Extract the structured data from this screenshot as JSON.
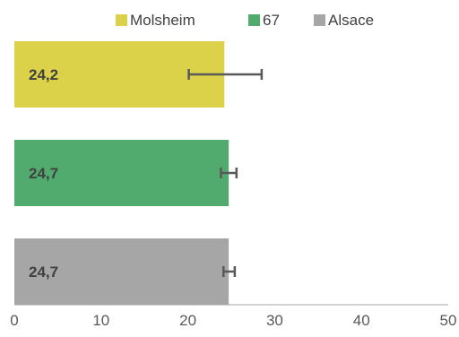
{
  "chart_data": {
    "type": "bar",
    "orientation": "horizontal",
    "categories": [
      "Molsheim",
      "67",
      "Alsace"
    ],
    "values": [
      24.2,
      24.7,
      24.7
    ],
    "value_labels": [
      "24,2",
      "24,7",
      "24,7"
    ],
    "error_bars": [
      {
        "low": 20.1,
        "high": 28.5
      },
      {
        "low": 23.8,
        "high": 25.6
      },
      {
        "low": 24.1,
        "high": 25.4
      }
    ],
    "colors": [
      "#dcd24a",
      "#52ab6e",
      "#a6a6a6"
    ],
    "legend": [
      "Molsheim",
      "67",
      "Alsace"
    ],
    "legend_position": "top",
    "xlim": [
      0,
      50
    ],
    "xticks": [
      0,
      10,
      20,
      30,
      40,
      50
    ],
    "xtick_labels": [
      "0",
      "10",
      "20",
      "30",
      "40",
      "50"
    ],
    "grid": false,
    "title": "",
    "xlabel": "",
    "ylabel": ""
  }
}
